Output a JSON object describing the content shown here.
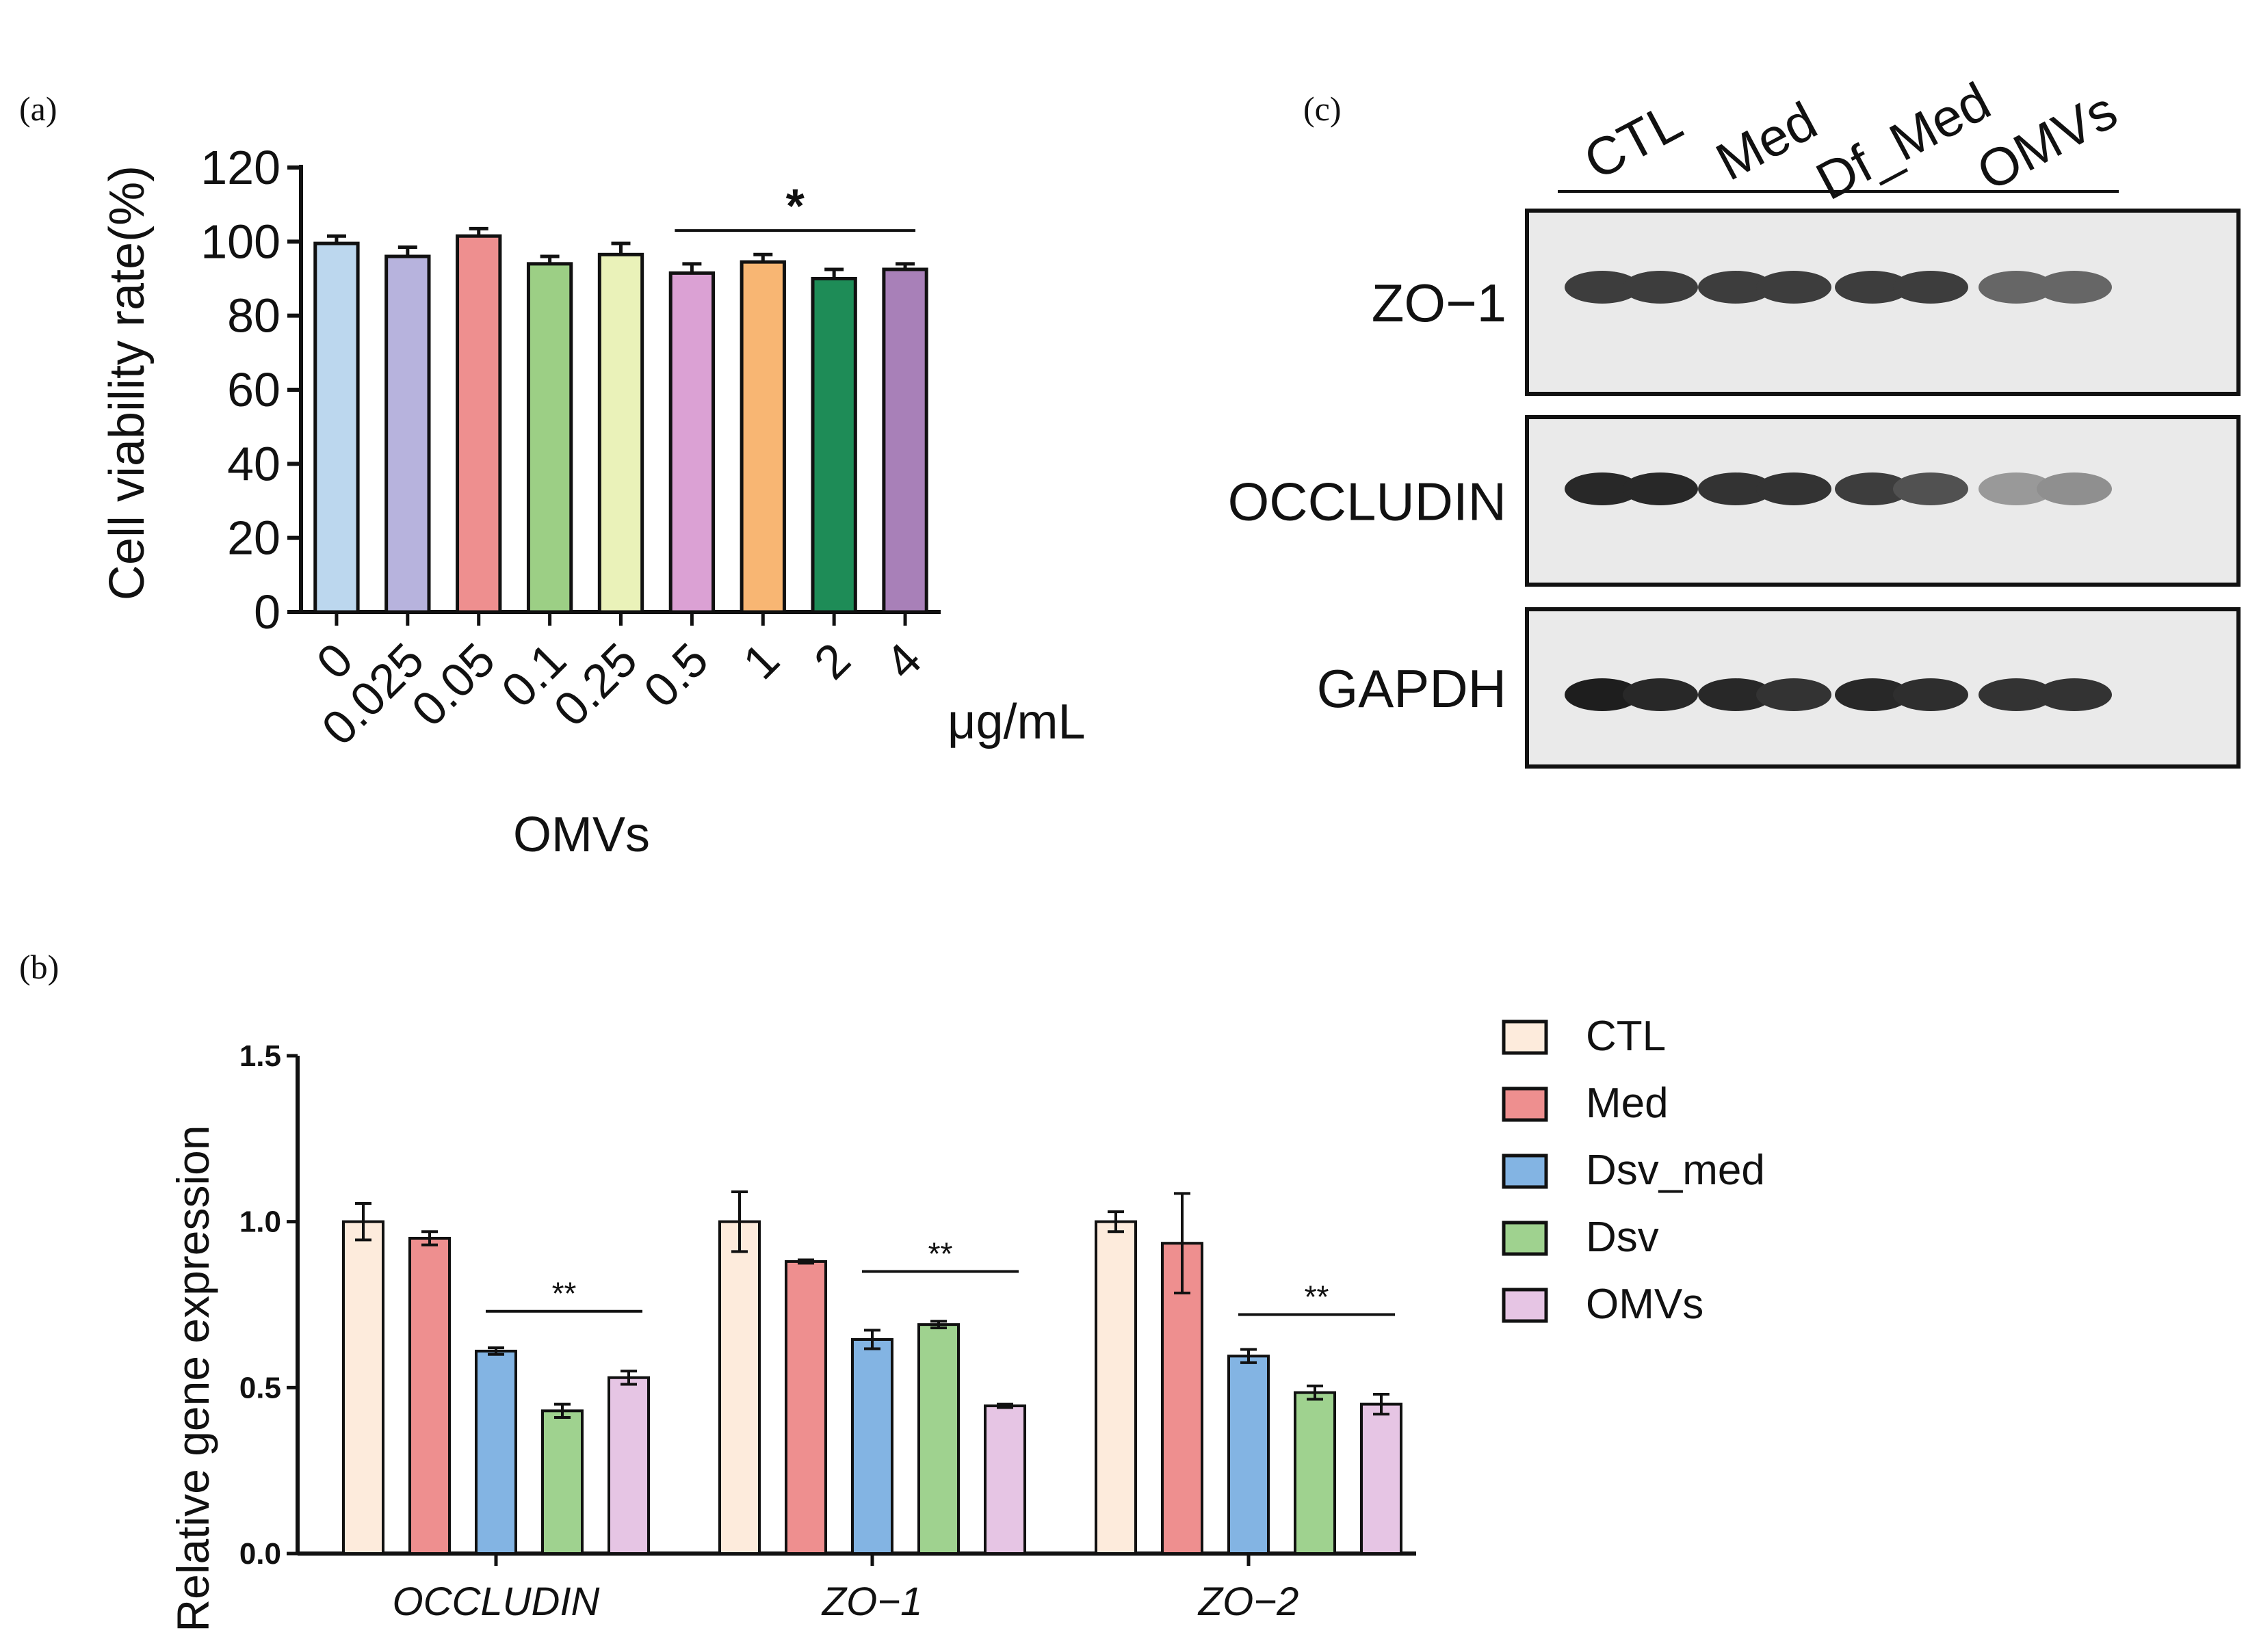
{
  "panels": {
    "a": {
      "letter": "(a)"
    },
    "b": {
      "letter": "(b)"
    },
    "c": {
      "letter": "(c)"
    }
  },
  "chart_data": [
    {
      "panel": "a",
      "type": "bar",
      "xlabel": "OMVs",
      "x_unit": "μg/mL",
      "ylabel": "Cell viability rate(%)",
      "ylim": [
        0,
        120
      ],
      "yticks": [
        0,
        20,
        40,
        60,
        80,
        100,
        120
      ],
      "categories": [
        "0",
        "0.025",
        "0.05",
        "0.1",
        "0.25",
        "0.5",
        "1",
        "2",
        "4"
      ],
      "values": [
        99.5,
        96,
        101.5,
        94,
        96.5,
        91.5,
        94.5,
        90,
        92.5
      ],
      "errors": [
        2,
        2.5,
        2,
        2,
        3,
        2.5,
        2,
        2.5,
        1.5
      ],
      "colors": [
        "#bcd7ee",
        "#b7b3dd",
        "#ee8f8f",
        "#9ccf85",
        "#eaf2b9",
        "#dba1d4",
        "#f8b673",
        "#1e8c57",
        "#a880b8"
      ],
      "annotations": [
        {
          "text": "*",
          "from": "0.5",
          "to": "4"
        }
      ]
    },
    {
      "panel": "b",
      "type": "bar",
      "xlabel": "",
      "ylabel": "Relative gene expression",
      "ylim": [
        0,
        1.5
      ],
      "yticks": [
        "0.0",
        "0.5",
        "1.0",
        "1.5"
      ],
      "categories": [
        "OCCLUDIN",
        "ZO−1",
        "ZO−2"
      ],
      "series": [
        {
          "name": "CTL",
          "color": "#fdebdc",
          "values": [
            1.0,
            1.0,
            1.0
          ],
          "errors": [
            0.055,
            0.09,
            0.03
          ]
        },
        {
          "name": "Med",
          "color": "#ee8f8f",
          "values": [
            0.95,
            0.88,
            0.935
          ],
          "errors": [
            0.02,
            0.005,
            0.15
          ]
        },
        {
          "name": "Dsv_med",
          "color": "#83b4e3",
          "values": [
            0.61,
            0.645,
            0.595
          ],
          "errors": [
            0.01,
            0.028,
            0.02
          ]
        },
        {
          "name": "Dsv",
          "color": "#9fd28f",
          "values": [
            0.43,
            0.69,
            0.485
          ],
          "errors": [
            0.02,
            0.01,
            0.02
          ]
        },
        {
          "name": "OMVs",
          "color": "#e6c5e4",
          "values": [
            0.53,
            0.445,
            0.45
          ],
          "errors": [
            0.02,
            0.005,
            0.03
          ]
        }
      ],
      "annotations": [
        {
          "text": "**",
          "group": "OCCLUDIN",
          "y": 0.73
        },
        {
          "text": "**",
          "group": "ZO−1",
          "y": 0.85
        },
        {
          "text": "**",
          "group": "ZO−2",
          "y": 0.72
        }
      ]
    }
  ],
  "blot": {
    "groups": [
      "CTL",
      "Med",
      "Df_Med",
      "OMVs"
    ],
    "rows": [
      "ZO−1",
      "OCCLUDIN",
      "GAPDH"
    ],
    "intensity": [
      [
        0.85,
        0.85,
        0.85,
        0.85,
        0.85,
        0.85,
        0.65,
        0.65
      ],
      [
        0.95,
        0.95,
        0.9,
        0.9,
        0.85,
        0.75,
        0.4,
        0.45
      ],
      [
        1.0,
        0.95,
        0.95,
        0.9,
        0.95,
        0.92,
        0.9,
        0.9
      ]
    ]
  }
}
